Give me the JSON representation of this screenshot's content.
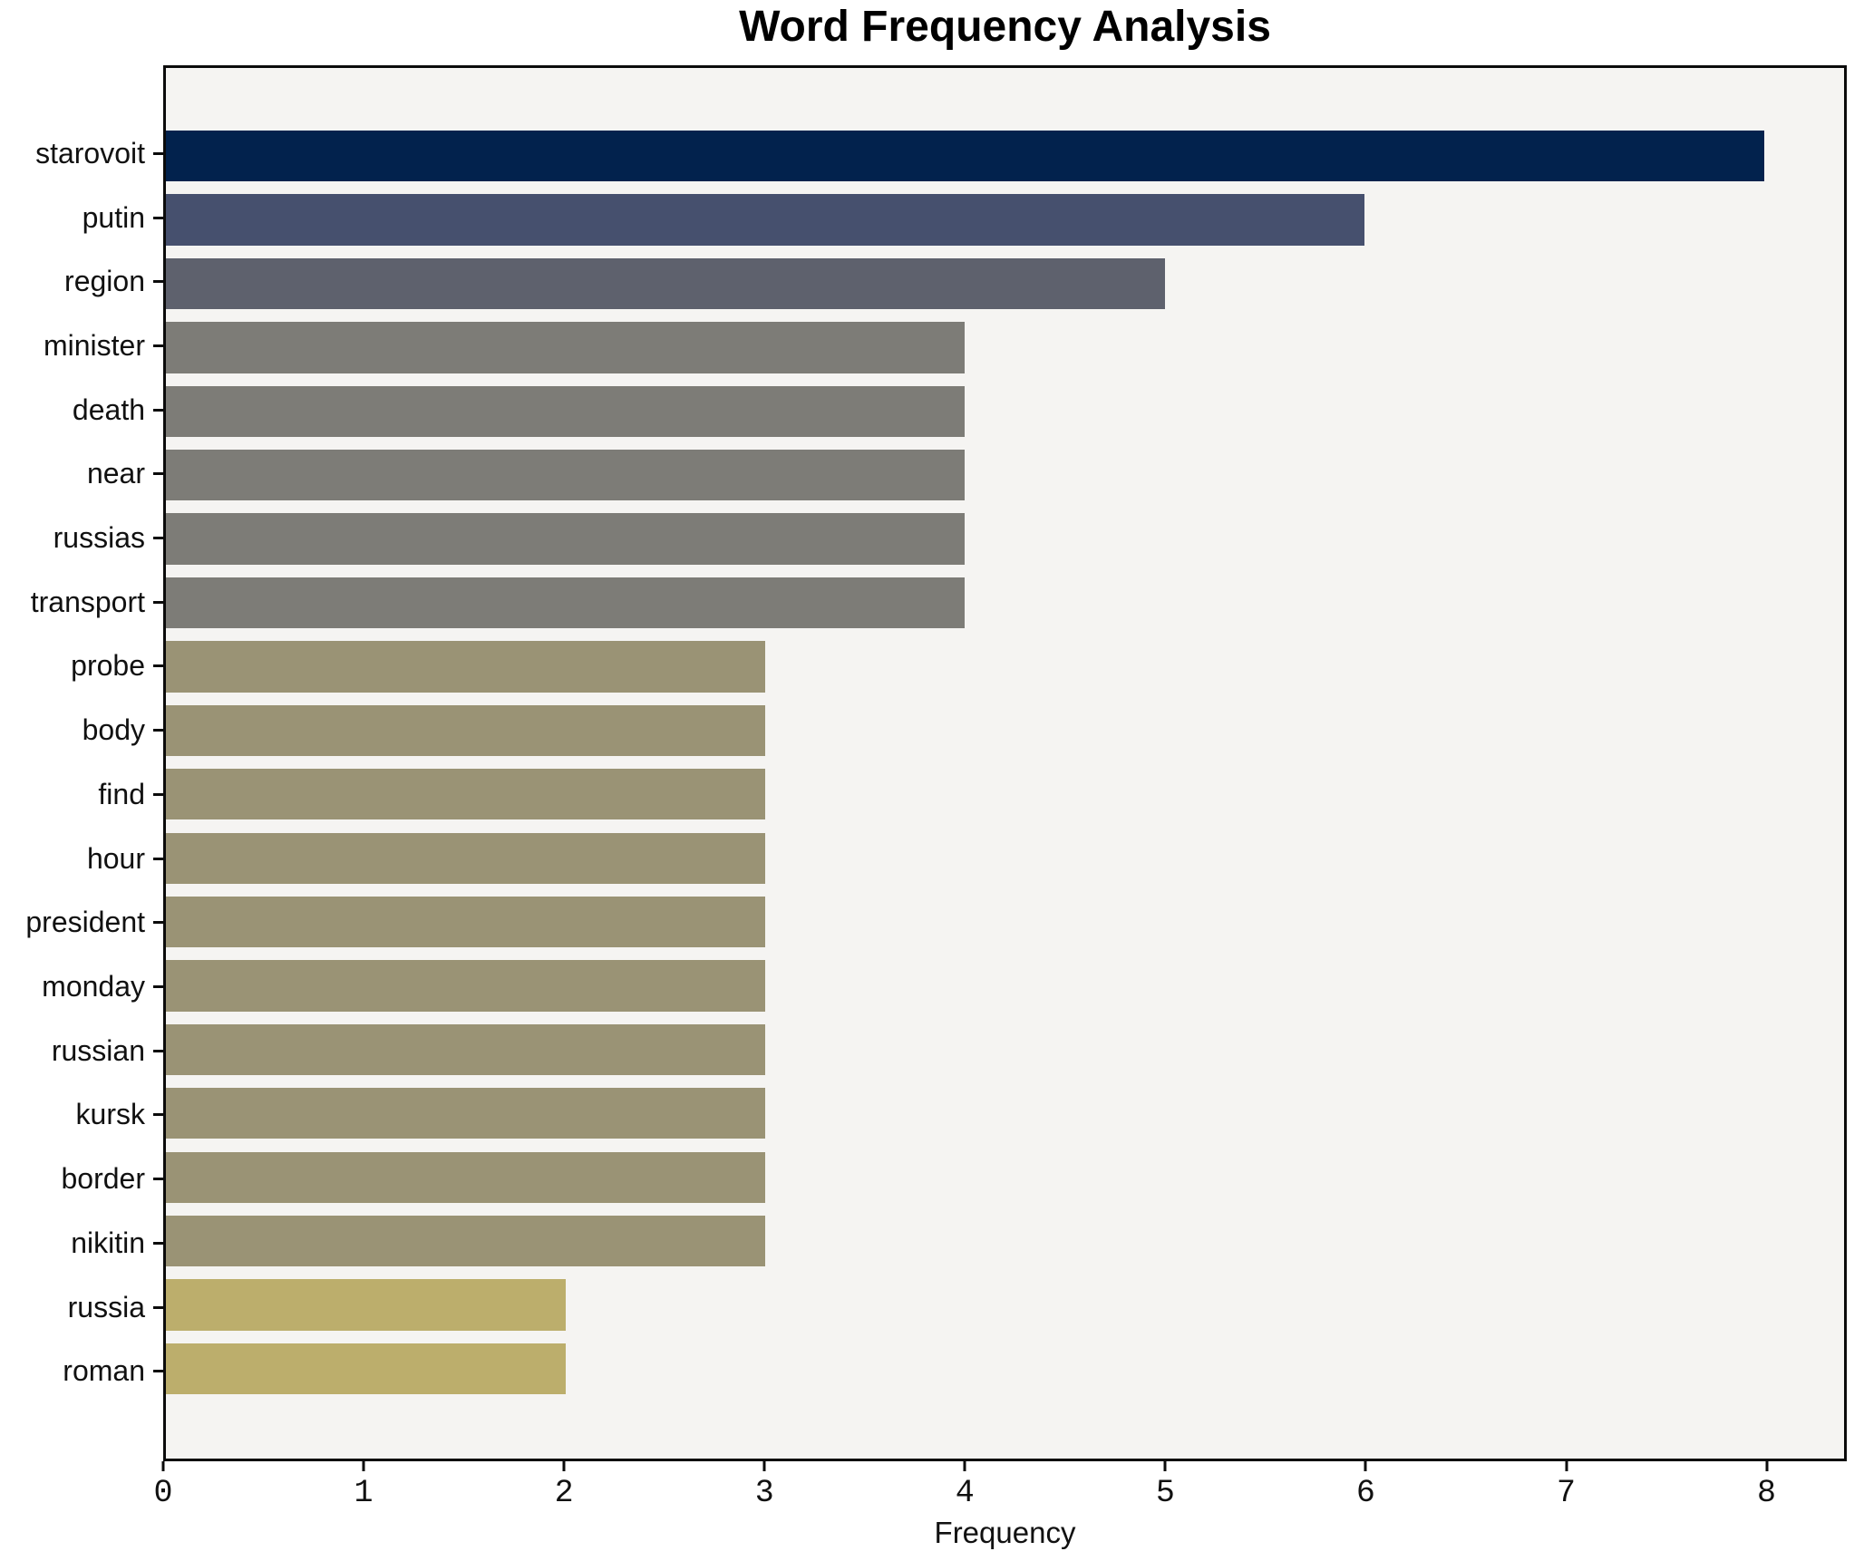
{
  "title": "Word Frequency Analysis",
  "chart_data": {
    "type": "bar",
    "orientation": "horizontal",
    "title": "Word Frequency Analysis",
    "xlabel": "Frequency",
    "ylabel": "",
    "categories": [
      "starovoit",
      "putin",
      "region",
      "minister",
      "death",
      "near",
      "russias",
      "transport",
      "probe",
      "body",
      "find",
      "hour",
      "president",
      "monday",
      "russian",
      "kursk",
      "border",
      "nikitin",
      "russia",
      "roman"
    ],
    "values": [
      8,
      6,
      5,
      4,
      4,
      4,
      4,
      4,
      3,
      3,
      3,
      3,
      3,
      3,
      3,
      3,
      3,
      3,
      2,
      2
    ],
    "bar_colors": [
      "#02224d",
      "#46506e",
      "#5e616d",
      "#7d7c77",
      "#7d7c77",
      "#7d7c77",
      "#7d7c77",
      "#7d7c77",
      "#9a9375",
      "#9a9375",
      "#9a9375",
      "#9a9375",
      "#9a9375",
      "#9a9375",
      "#9a9375",
      "#9a9375",
      "#9a9375",
      "#9a9375",
      "#bcae6c",
      "#bcae6c"
    ],
    "x_ticks": [
      "0",
      "1",
      "2",
      "3",
      "4",
      "5",
      "6",
      "7",
      "8"
    ],
    "x_tick_values": [
      0,
      1,
      2,
      3,
      4,
      5,
      6,
      7,
      8
    ],
    "xlim": [
      0,
      8.4
    ],
    "grid": false,
    "legend": null,
    "plot_background": "#f5f4f2",
    "figure_background": "#ffffff",
    "spine_color": "#0b0b0b"
  }
}
